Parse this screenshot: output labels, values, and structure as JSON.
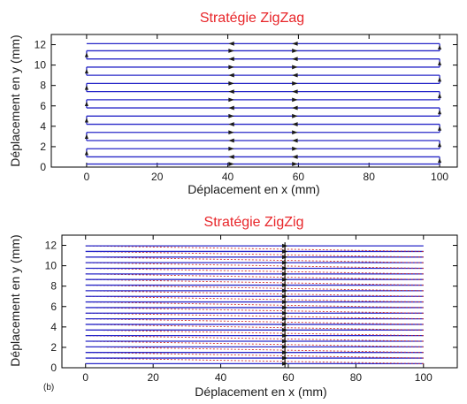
{
  "chart_data": [
    {
      "type": "line",
      "title": "Stratégie ZigZag",
      "xlabel": "Déplacement en x (mm)",
      "ylabel": "Déplacement en y (mm)",
      "xlim": [
        -10,
        105
      ],
      "ylim": [
        0,
        13
      ],
      "xticks": [
        0,
        20,
        40,
        60,
        80,
        100
      ],
      "yticks": [
        0,
        2,
        4,
        6,
        8,
        10,
        12
      ],
      "panel_label": "",
      "pattern": "zigzag",
      "path_x": [
        0,
        100
      ],
      "pass_y": [
        0.3,
        1.0,
        1.8,
        2.6,
        3.4,
        4.2,
        5.0,
        5.8,
        6.6,
        7.4,
        8.2,
        9.0,
        9.8,
        10.6,
        11.4,
        12.1
      ],
      "arrow_x": [
        0,
        41,
        59,
        100
      ],
      "colors": {
        "path": "#2828c8",
        "arrow": "#1a1a1a",
        "title": "#e8262a"
      }
    },
    {
      "type": "line",
      "title": "Stratégie ZigZig",
      "xlabel": "Déplacement en x (mm)",
      "ylabel": "Déplacement en y (mm)",
      "xlim": [
        -7,
        110
      ],
      "ylim": [
        0,
        13
      ],
      "xticks": [
        0,
        20,
        40,
        60,
        80,
        100
      ],
      "yticks": [
        0,
        2,
        4,
        6,
        8,
        10,
        12
      ],
      "panel_label": "(b)",
      "pattern": "zigzig",
      "path_x": [
        0,
        100
      ],
      "pass_y": [
        0.4,
        0.95,
        1.5,
        2.05,
        2.6,
        3.15,
        3.7,
        4.25,
        4.8,
        5.35,
        5.9,
        6.45,
        7.0,
        7.55,
        8.1,
        8.65,
        9.2,
        9.75,
        10.3,
        10.85,
        11.4,
        11.95
      ],
      "arrow_x": [
        59
      ],
      "colors": {
        "path": "#2828c8",
        "return": "#d03030",
        "arrow": "#1a1a1a",
        "title": "#e8262a"
      }
    }
  ]
}
